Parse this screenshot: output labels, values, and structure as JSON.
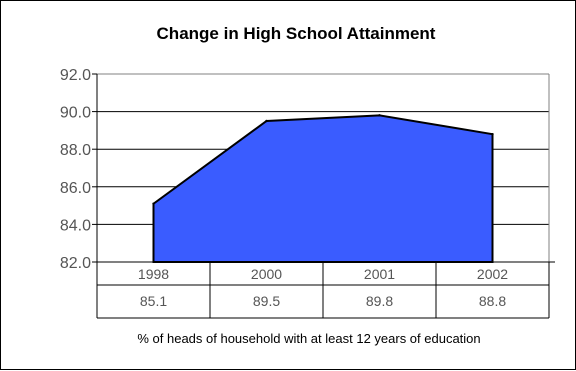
{
  "chart_data": {
    "type": "area",
    "title": "Change in High School Attainment",
    "xlabel": "% of heads of household with at least 12 years of education",
    "ylabel": "",
    "categories": [
      "1998",
      "2000",
      "2001",
      "2002"
    ],
    "values": [
      85.1,
      89.5,
      89.8,
      88.8
    ],
    "value_labels": [
      "85.1",
      "89.5",
      "89.8",
      "88.8"
    ],
    "ylim": [
      82.0,
      92.0
    ],
    "yticks": [
      "82.0",
      "84.0",
      "86.0",
      "88.0",
      "90.0",
      "92.0"
    ],
    "grid": true,
    "legend": "none",
    "data_table": true,
    "fill_color": "#3a5cff",
    "line_color": "#000000"
  }
}
